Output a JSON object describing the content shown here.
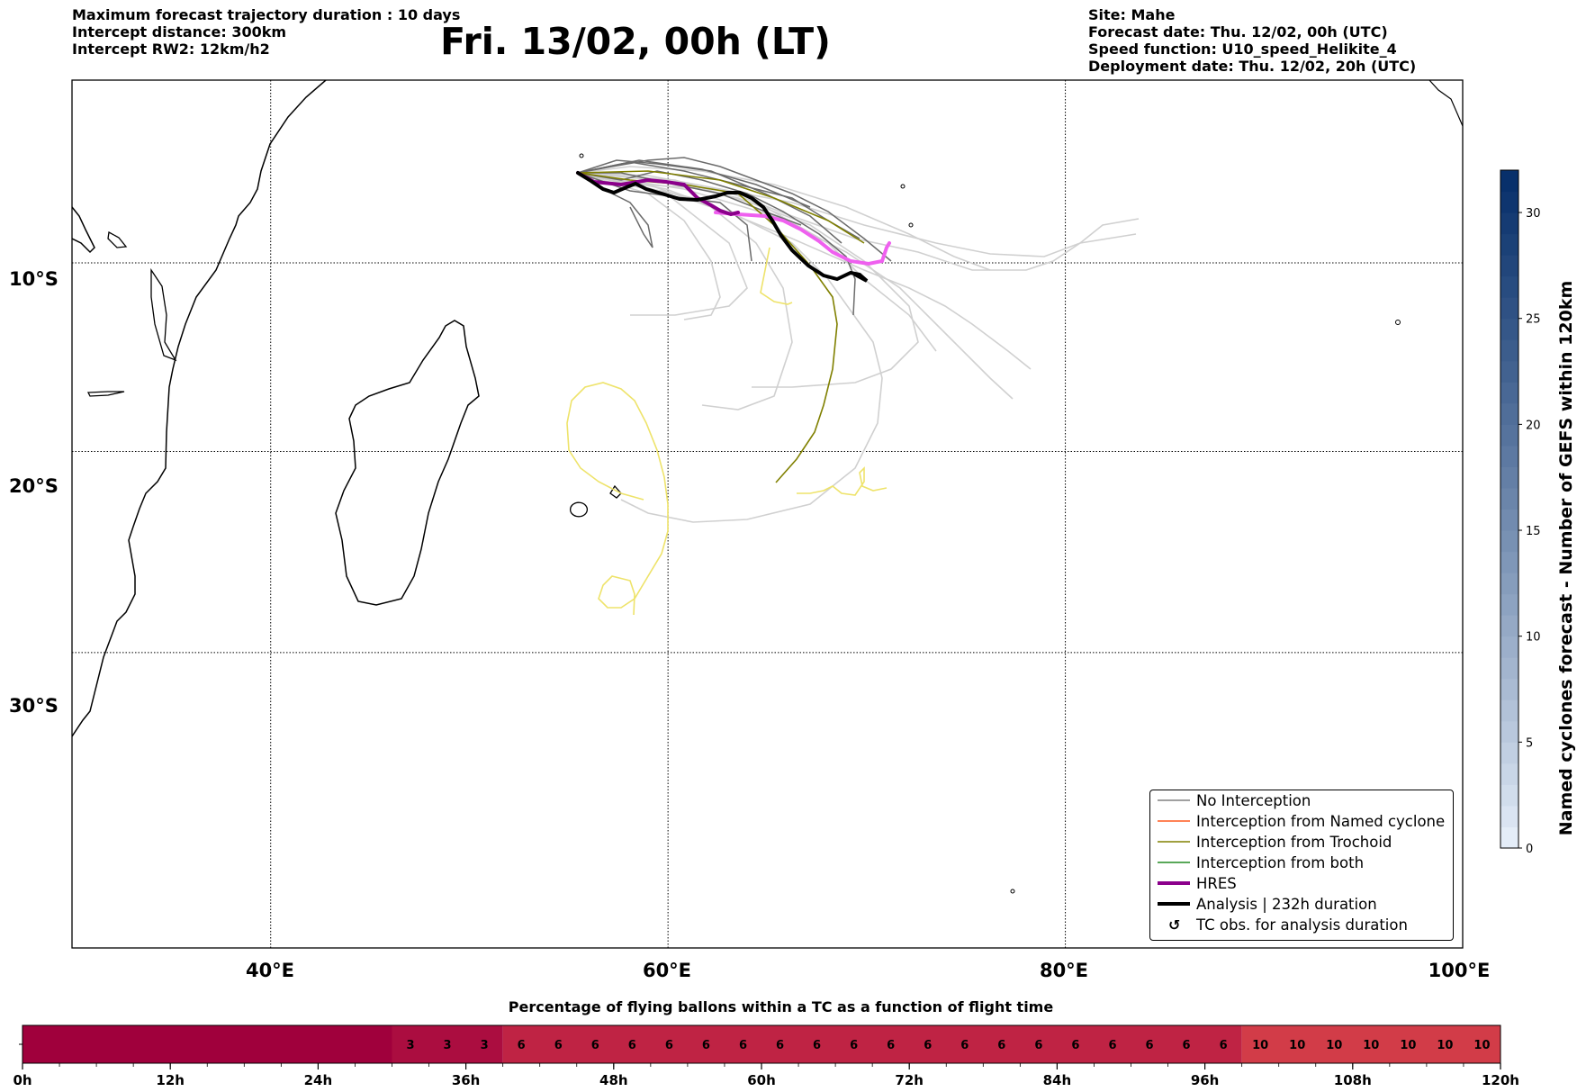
{
  "header_left": [
    "Maximum forecast trajectory duration : 10 days",
    "Intercept distance: 300km",
    "Intercept RW2: 12km/h2"
  ],
  "title": "Fri. 13/02, 00h (LT)",
  "header_right": [
    "Site: Mahe",
    "Forecast date: Thu. 12/02, 00h (UTC)",
    "Speed function: U10_speed_Helikite_4",
    "Deployment date: Thu. 12/02, 20h (UTC)"
  ],
  "map": {
    "lon_range": [
      30,
      100
    ],
    "lat_range": [
      -43,
      0
    ],
    "lat_labels": [
      "10°S",
      "20°S",
      "30°S"
    ],
    "lat_values": [
      -10,
      -20,
      -30
    ],
    "lon_labels": [
      "40°E",
      "60°E",
      "80°E",
      "100°E"
    ],
    "lon_values": [
      40,
      60,
      80,
      100
    ],
    "gridlines": true,
    "launch_site": {
      "lon": 55.5,
      "lat": -4.6
    }
  },
  "legend": {
    "items": [
      {
        "label": "No Interception",
        "color": "#808080",
        "style": "thin"
      },
      {
        "label": "Interception from Named cyclone",
        "color": "#ff5a1e",
        "style": "thin"
      },
      {
        "label": "Interception from Trochoid",
        "color": "#808000",
        "style": "thin"
      },
      {
        "label": "Interception from both",
        "color": "#228b22",
        "style": "thin"
      },
      {
        "label": "HRES",
        "color": "#8b008b",
        "style": "thick"
      },
      {
        "label": "Analysis | 232h duration",
        "color": "#000000",
        "style": "thick"
      },
      {
        "label": "TC obs. for analysis duration",
        "color": "#000000",
        "style": "symbol",
        "symbol": "↺"
      }
    ]
  },
  "colorbar": {
    "title": "Named cyclones forecast - Number of GEFS within 120km",
    "ticks": [
      "0",
      "5",
      "10",
      "15",
      "20",
      "25",
      "30"
    ],
    "tick_values": [
      0,
      5,
      10,
      15,
      20,
      25,
      30
    ],
    "range": [
      0,
      32
    ],
    "color_low": "#e4edf8",
    "color_high": "#08306b"
  },
  "bottom_bar": {
    "title": "Percentage of flying ballons within a TC as a function of flight time",
    "x_labels": [
      "0h",
      "12h",
      "24h",
      "36h",
      "48h",
      "60h",
      "72h",
      "84h",
      "96h",
      "108h",
      "120h"
    ],
    "x_values": [
      0,
      12,
      24,
      36,
      48,
      60,
      72,
      84,
      96,
      108,
      120
    ],
    "segments": [
      {
        "from": 0,
        "to": 30,
        "value": "",
        "color": "#a0003c"
      },
      {
        "from": 30,
        "to": 39,
        "value": "3",
        "color": "#ab0d40"
      },
      {
        "from": 39,
        "to": 99,
        "value": "6",
        "color": "#bf2344"
      },
      {
        "from": 99,
        "to": 120,
        "value": "10",
        "color": "#d23c48"
      }
    ],
    "cell_hours": 3
  }
}
